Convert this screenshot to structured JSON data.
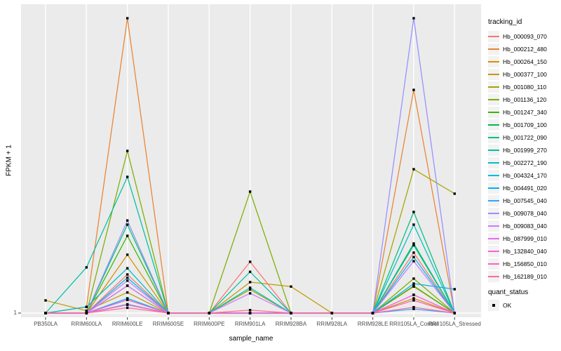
{
  "chart_data": {
    "type": "line",
    "title": "",
    "xlabel": "sample_name",
    "ylabel": "FPKM + 1",
    "y_tick_labels": [
      "1"
    ],
    "y_scale_note": "Only the value 1 is labeled on the y axis; series values below are fractions of panel height above the y=1 baseline (1.0 = tallest peak).",
    "x_categories": [
      "PB350LA",
      "RRIM600LA",
      "RRIM600LE",
      "RRIM600SE",
      "RRIM600PE",
      "RRIM901LA",
      "RRIM928BA",
      "RRIM928LA",
      "RRIM928LE",
      "RRII105LA_Control",
      "RRII105LA_Stressed"
    ],
    "series": [
      {
        "name": "Hb_000093_070",
        "color": "#F8766D",
        "values": [
          0,
          0,
          0.131,
          0,
          0,
          0.174,
          0,
          0,
          0,
          0.205,
          0
        ]
      },
      {
        "name": "Hb_000212_480",
        "color": "#EA8331",
        "values": [
          0,
          0.021,
          1.0,
          0,
          0,
          0,
          0,
          0,
          0,
          0.757,
          0
        ]
      },
      {
        "name": "Hb_000264_150",
        "color": "#D89000",
        "values": [
          0,
          0,
          0.198,
          0,
          0,
          0,
          0,
          0,
          0,
          0.09,
          0
        ]
      },
      {
        "name": "Hb_000377_100",
        "color": "#C09B00",
        "values": [
          0.043,
          0.008,
          0.07,
          0,
          0,
          0.105,
          0.09,
          0,
          0,
          0.05,
          0
        ]
      },
      {
        "name": "Hb_001080_110",
        "color": "#A3A500",
        "values": [
          0,
          0,
          0.045,
          0,
          0,
          0.08,
          0,
          0,
          0,
          0.488,
          0.405
        ]
      },
      {
        "name": "Hb_001136_120",
        "color": "#7CAE00",
        "values": [
          0,
          0,
          0.55,
          0,
          0,
          0.412,
          0,
          0,
          0,
          0.117,
          0
        ]
      },
      {
        "name": "Hb_001247_340",
        "color": "#39B600",
        "values": [
          0,
          0,
          0.262,
          0,
          0,
          0,
          0,
          0,
          0,
          0.092,
          0
        ]
      },
      {
        "name": "Hb_001709_100",
        "color": "#00BB4E",
        "values": [
          0,
          0,
          0.093,
          0,
          0,
          0,
          0,
          0,
          0,
          0.236,
          0
        ]
      },
      {
        "name": "Hb_001722_090",
        "color": "#00BF7D",
        "values": [
          0,
          0,
          0.3,
          0,
          0,
          0,
          0,
          0,
          0,
          0.343,
          0
        ]
      },
      {
        "name": "Hb_001999_270",
        "color": "#00C1A3",
        "values": [
          0,
          0.155,
          0.462,
          0,
          0,
          0.14,
          0,
          0,
          0,
          0.23,
          0
        ]
      },
      {
        "name": "Hb_002272_190",
        "color": "#00BFC4",
        "values": [
          0,
          0.021,
          0.152,
          0,
          0,
          0.086,
          0,
          0,
          0,
          0.3,
          0
        ]
      },
      {
        "name": "Hb_004324_170",
        "color": "#00BAE0",
        "values": [
          0,
          0,
          0.12,
          0,
          0,
          0,
          0,
          0,
          0,
          0.19,
          0
        ]
      },
      {
        "name": "Hb_004491_020",
        "color": "#00B0F6",
        "values": [
          0,
          0,
          0.05,
          0,
          0,
          0,
          0,
          0,
          0,
          0.1,
          0.081
        ]
      },
      {
        "name": "Hb_007545_040",
        "color": "#35A2FF",
        "values": [
          0,
          0,
          0.03,
          0,
          0,
          0,
          0,
          0,
          0,
          0.014,
          0
        ]
      },
      {
        "name": "Hb_009078_040",
        "color": "#9590FF",
        "values": [
          0,
          0,
          0.314,
          0,
          0,
          0,
          0,
          0,
          0,
          1.0,
          0
        ]
      },
      {
        "name": "Hb_009083_040",
        "color": "#C77CFF",
        "values": [
          0,
          0,
          0.11,
          0,
          0,
          0.067,
          0,
          0,
          0,
          0.176,
          0
        ]
      },
      {
        "name": "Hb_087999_010",
        "color": "#E76BF3",
        "values": [
          0,
          0,
          0.093,
          0,
          0,
          0,
          0,
          0,
          0,
          0.062,
          0
        ]
      },
      {
        "name": "Hb_132840_040",
        "color": "#FA62DB",
        "values": [
          0,
          0,
          0.045,
          0,
          0,
          0,
          0,
          0,
          0,
          0.062,
          0
        ]
      },
      {
        "name": "Hb_156850_010",
        "color": "#FF62BC",
        "values": [
          0,
          0,
          0.028,
          0,
          0,
          0,
          0,
          0,
          0,
          0.043,
          0
        ]
      },
      {
        "name": "Hb_162189_010",
        "color": "#FF6A98",
        "values": [
          0,
          0,
          0.018,
          0,
          0,
          0.01,
          0,
          0,
          0,
          0.02,
          0
        ]
      }
    ],
    "legend": {
      "tracking_title": "tracking_id",
      "quant_title": "quant_status",
      "quant_values": [
        {
          "label": "OK",
          "marker": "filled-square",
          "color": "#000000"
        }
      ]
    },
    "legend_position": "right",
    "grid": true,
    "point_shape": "filled-square",
    "point_color": "#000000",
    "colors": {
      "panel_bg": "#EBEBEB",
      "gridline": "#FFFFFF",
      "tick_text": "#4D4D4D",
      "tick_mark": "#333333",
      "legend_key_bg": "#F2F2F2"
    }
  }
}
